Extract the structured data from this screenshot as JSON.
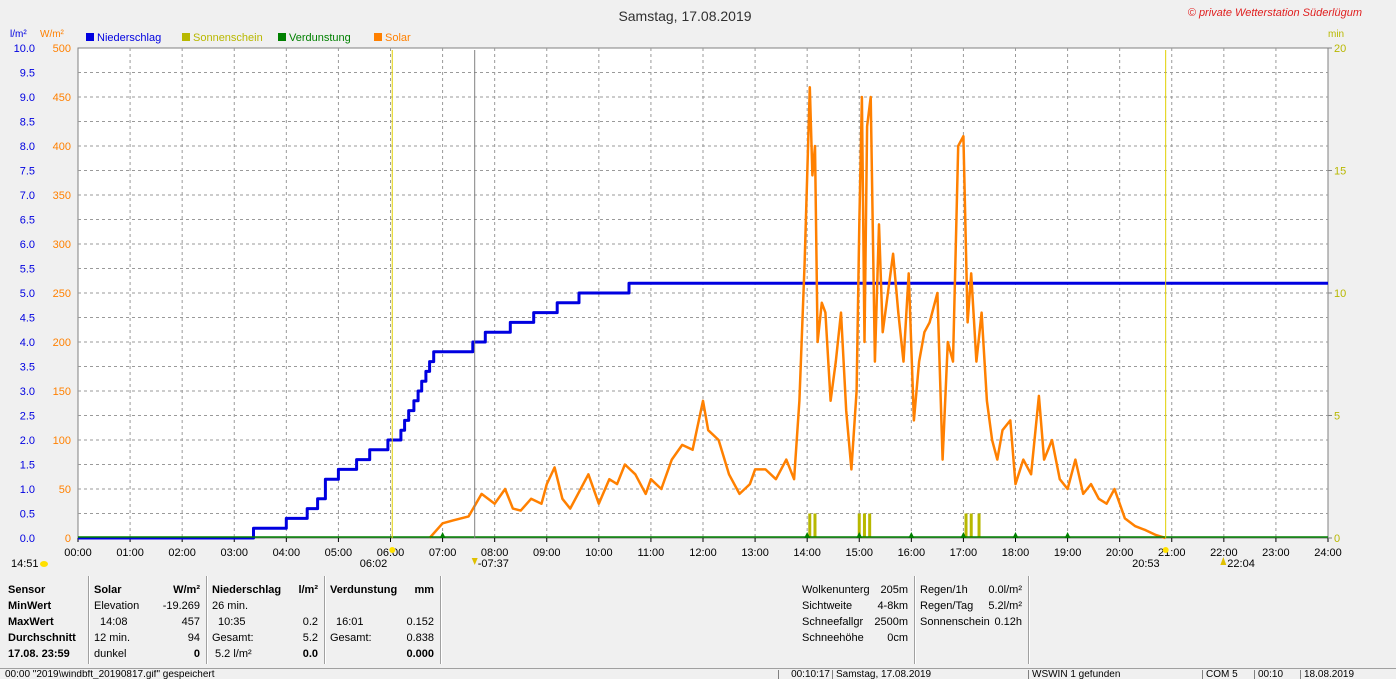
{
  "chart_data": {
    "type": "line",
    "title": "Samstag, 17.08.2019",
    "copyright": "© private Wetterstation Süderlügum",
    "left_axis_rain": {
      "unit": "l/m²",
      "range": [
        0,
        10
      ],
      "ticks": [
        "0.0",
        "0.5",
        "1.0",
        "1.5",
        "2.0",
        "2.5",
        "3.0",
        "3.5",
        "4.0",
        "4.5",
        "5.0",
        "5.5",
        "6.0",
        "6.5",
        "7.0",
        "7.5",
        "8.0",
        "8.5",
        "9.0",
        "9.5",
        "10.0"
      ]
    },
    "left_axis_solar": {
      "unit": "W/m²",
      "range": [
        0,
        500
      ],
      "ticks": [
        "0",
        "50",
        "100",
        "150",
        "200",
        "250",
        "300",
        "350",
        "400",
        "450",
        "500"
      ]
    },
    "right_axis": {
      "unit": "min",
      "range": [
        0,
        20
      ],
      "ticks": [
        "0",
        "5",
        "10",
        "15",
        "20"
      ]
    },
    "x_axis": {
      "range": [
        0,
        24
      ],
      "ticks": [
        "00:00",
        "01:00",
        "02:00",
        "03:00",
        "04:00",
        "05:00",
        "06:00",
        "07:00",
        "08:00",
        "09:00",
        "10:00",
        "11:00",
        "12:00",
        "13:00",
        "14:00",
        "15:00",
        "16:00",
        "17:00",
        "18:00",
        "19:00",
        "20:00",
        "21:00",
        "22:00",
        "23:00",
        "24:00"
      ]
    },
    "grid": true,
    "legend": {
      "placement": "top-left",
      "items": [
        {
          "name": "Niederschlag",
          "color": "#0000e0"
        },
        {
          "name": "Sonnenschein",
          "color": "#b8b800"
        },
        {
          "name": "Verdunstung",
          "color": "#008000"
        },
        {
          "name": "Solar",
          "color": "#ff8000"
        }
      ]
    },
    "markers": {
      "moonrise": "14:51",
      "sunrise": "06:02",
      "daylight_start": "-07:37",
      "sunset": "20:53",
      "moonset": "22:04"
    },
    "series": [
      {
        "name": "Niederschlag",
        "color": "#0000e0",
        "axis": "rain",
        "x": [
          0,
          3.37,
          3.37,
          4.0,
          4.0,
          4.4,
          4.4,
          4.6,
          4.6,
          4.75,
          4.75,
          5.0,
          5.0,
          5.35,
          5.35,
          5.6,
          5.6,
          5.95,
          5.95,
          6.2,
          6.2,
          6.27,
          6.27,
          6.35,
          6.35,
          6.45,
          6.45,
          6.53,
          6.53,
          6.6,
          6.6,
          6.68,
          6.68,
          6.75,
          6.75,
          6.83,
          6.83,
          7.58,
          7.58,
          7.82,
          7.82,
          8.3,
          8.3,
          8.75,
          8.75,
          9.2,
          9.2,
          9.62,
          9.62,
          10.58,
          10.58,
          24
        ],
        "y": [
          0,
          0,
          0.2,
          0.2,
          0.4,
          0.4,
          0.6,
          0.6,
          0.8,
          0.8,
          1.2,
          1.2,
          1.4,
          1.4,
          1.6,
          1.6,
          1.8,
          1.8,
          2.0,
          2.0,
          2.2,
          2.2,
          2.4,
          2.4,
          2.6,
          2.6,
          2.8,
          2.8,
          3.0,
          3.0,
          3.2,
          3.2,
          3.4,
          3.4,
          3.6,
          3.6,
          3.8,
          3.8,
          4.0,
          4.0,
          4.2,
          4.2,
          4.4,
          4.4,
          4.6,
          4.6,
          4.8,
          4.8,
          5.0,
          5.0,
          5.2,
          5.2
        ]
      },
      {
        "name": "Solar",
        "color": "#ff8000",
        "axis": "solar",
        "x": [
          6.75,
          7.0,
          7.2,
          7.5,
          7.75,
          8.0,
          8.2,
          8.35,
          8.5,
          8.7,
          8.9,
          9.0,
          9.15,
          9.3,
          9.45,
          9.6,
          9.8,
          10.0,
          10.2,
          10.35,
          10.5,
          10.7,
          10.9,
          11.0,
          11.2,
          11.4,
          11.6,
          11.8,
          12.0,
          12.1,
          12.3,
          12.5,
          12.7,
          12.9,
          13.0,
          13.2,
          13.4,
          13.6,
          13.75,
          13.85,
          13.95,
          14.05,
          14.1,
          14.15,
          14.2,
          14.28,
          14.35,
          14.45,
          14.55,
          14.65,
          14.75,
          14.85,
          14.95,
          15.0,
          15.05,
          15.1,
          15.15,
          15.22,
          15.3,
          15.38,
          15.45,
          15.55,
          15.65,
          15.75,
          15.85,
          15.95,
          16.05,
          16.15,
          16.25,
          16.35,
          16.5,
          16.6,
          16.7,
          16.8,
          16.9,
          17.0,
          17.08,
          17.15,
          17.25,
          17.35,
          17.45,
          17.55,
          17.65,
          17.75,
          17.9,
          18.0,
          18.15,
          18.3,
          18.45,
          18.55,
          18.7,
          18.85,
          19.0,
          19.15,
          19.3,
          19.45,
          19.6,
          19.75,
          19.9,
          20.1,
          20.3,
          20.5,
          20.7,
          20.88
        ],
        "y": [
          0,
          15,
          18,
          22,
          45,
          35,
          50,
          30,
          28,
          40,
          35,
          55,
          72,
          40,
          30,
          45,
          65,
          35,
          60,
          55,
          75,
          65,
          45,
          60,
          50,
          80,
          95,
          90,
          140,
          110,
          100,
          65,
          45,
          55,
          70,
          70,
          60,
          80,
          60,
          140,
          280,
          460,
          370,
          400,
          200,
          240,
          230,
          140,
          180,
          230,
          130,
          70,
          150,
          320,
          450,
          200,
          420,
          450,
          180,
          320,
          210,
          250,
          290,
          230,
          180,
          270,
          120,
          180,
          210,
          220,
          250,
          80,
          200,
          180,
          400,
          410,
          220,
          270,
          180,
          230,
          140,
          100,
          80,
          110,
          120,
          55,
          80,
          65,
          145,
          80,
          100,
          60,
          50,
          80,
          45,
          55,
          40,
          35,
          50,
          20,
          12,
          8,
          3,
          0
        ]
      },
      {
        "name": "Sonnenschein",
        "color": "#b8b800",
        "axis": "min",
        "x": [
          14.05,
          14.15,
          15.0,
          15.1,
          15.2,
          17.05,
          17.15,
          17.3
        ],
        "y": [
          1,
          1,
          1,
          1,
          1,
          1,
          1,
          1
        ]
      },
      {
        "name": "Verdunstung",
        "color": "#008000",
        "axis": "min",
        "x": [
          7.0,
          14.0,
          15.0,
          16.0,
          17.0,
          18.0,
          19.0
        ],
        "y": [
          0.15,
          0.15,
          0.15,
          0.15,
          0.15,
          0.15,
          0.15
        ]
      }
    ]
  },
  "stats": {
    "col_sensor": {
      "header": "Sensor",
      "rows": [
        "MinWert",
        "MaxWert",
        "Durchschnitt",
        "17.08.  23:59"
      ]
    },
    "col_solar": {
      "header": "Solar",
      "unit": "W/m²",
      "rows": [
        {
          "a": "Elevation",
          "b": "-19.269"
        },
        {
          "a": "14:08",
          "b": "457"
        },
        {
          "a": "12 min.",
          "b": "94"
        },
        {
          "a": "dunkel",
          "b": "0"
        }
      ]
    },
    "col_rain": {
      "header": "Niederschlag",
      "unit": "l/m²",
      "rows": [
        {
          "a": "26 min.",
          "b": ""
        },
        {
          "a": "10:35",
          "b": "0.2"
        },
        {
          "a": "Gesamt:",
          "b": "5.2"
        },
        {
          "a": "5.2 l/m²",
          "b": "0.0"
        }
      ]
    },
    "col_evap": {
      "header": "Verdunstung",
      "unit": "mm",
      "rows": [
        {
          "a": "",
          "b": ""
        },
        {
          "a": "16:01",
          "b": "0.152"
        },
        {
          "a": "Gesamt:",
          "b": "0.838"
        },
        {
          "a": "",
          "b": "0.000"
        }
      ]
    },
    "cloud": [
      {
        "label": "Wolkenunterg",
        "value": "205m"
      },
      {
        "label": "Sichtweite",
        "value": "4-8km"
      },
      {
        "label": "Schneefallgr",
        "value": "2500m"
      },
      {
        "label": "Schneehöhe",
        "value": "0cm"
      }
    ],
    "rain_extra": [
      {
        "label": "Regen/1h",
        "value": "0.0l/m²"
      },
      {
        "label": "Regen/Tag",
        "value": "5.2l/m²"
      },
      {
        "label": "Sonnenschein",
        "value": "0.12h"
      }
    ]
  },
  "statusbar": {
    "c1": "00:00  \"2019\\windbft_20190817.gif\"  gespeichert",
    "c2": "00:10:17",
    "c3": "Samstag, 17.08.2019",
    "c4": "WSWIN 1 gefunden",
    "c5": "COM 5",
    "c6": "00:10",
    "c7": "18.08.2019"
  }
}
